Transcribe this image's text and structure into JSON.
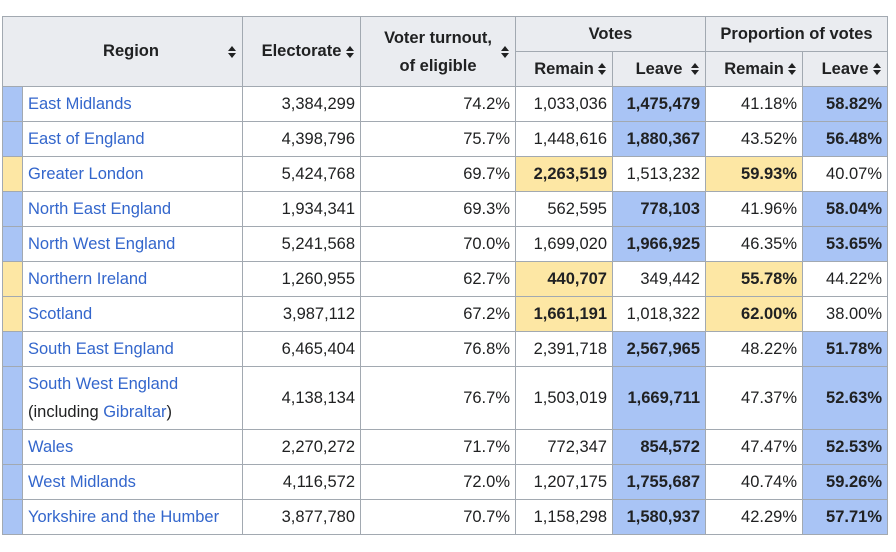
{
  "colors": {
    "leave": "#a9c4f5",
    "remain": "#fde7a4",
    "link": "#3366cc",
    "header_bg": "#eaecf0",
    "border": "#a2a9b1"
  },
  "header": {
    "region": "Region",
    "electorate": "Electorate",
    "turnout_line1": "Voter turnout,",
    "turnout_line2": "of eligible",
    "votes": "Votes",
    "proportion": "Proportion of votes",
    "remain": "Remain",
    "leave": "Leave",
    "remain_pct": "Remain",
    "leave_pct": "Leave"
  },
  "rows": [
    {
      "region": "East Midlands",
      "region_extra": "",
      "region_extra_link": "",
      "region_extra_close": "",
      "winner": "leave",
      "electorate": "3,384,299",
      "turnout": "74.2%",
      "remain": "1,033,036",
      "leave": "1,475,479",
      "remain_pct": "41.18%",
      "leave_pct": "58.82%"
    },
    {
      "region": "East of England",
      "region_extra": "",
      "region_extra_link": "",
      "region_extra_close": "",
      "winner": "leave",
      "electorate": "4,398,796",
      "turnout": "75.7%",
      "remain": "1,448,616",
      "leave": "1,880,367",
      "remain_pct": "43.52%",
      "leave_pct": "56.48%"
    },
    {
      "region": "Greater London",
      "region_extra": "",
      "region_extra_link": "",
      "region_extra_close": "",
      "winner": "remain",
      "electorate": "5,424,768",
      "turnout": "69.7%",
      "remain": "2,263,519",
      "leave": "1,513,232",
      "remain_pct": "59.93%",
      "leave_pct": "40.07%"
    },
    {
      "region": "North East England",
      "region_extra": "",
      "region_extra_link": "",
      "region_extra_close": "",
      "winner": "leave",
      "electorate": "1,934,341",
      "turnout": "69.3%",
      "remain": "562,595",
      "leave": "778,103",
      "remain_pct": "41.96%",
      "leave_pct": "58.04%"
    },
    {
      "region": "North West England",
      "region_extra": "",
      "region_extra_link": "",
      "region_extra_close": "",
      "winner": "leave",
      "electorate": "5,241,568",
      "turnout": "70.0%",
      "remain": "1,699,020",
      "leave": "1,966,925",
      "remain_pct": "46.35%",
      "leave_pct": "53.65%"
    },
    {
      "region": "Northern Ireland",
      "region_extra": "",
      "region_extra_link": "",
      "region_extra_close": "",
      "winner": "remain",
      "electorate": "1,260,955",
      "turnout": "62.7%",
      "remain": "440,707",
      "leave": "349,442",
      "remain_pct": "55.78%",
      "leave_pct": "44.22%"
    },
    {
      "region": "Scotland",
      "region_extra": "",
      "region_extra_link": "",
      "region_extra_close": "",
      "winner": "remain",
      "electorate": "3,987,112",
      "turnout": "67.2%",
      "remain": "1,661,191",
      "leave": "1,018,322",
      "remain_pct": "62.00%",
      "leave_pct": "38.00%"
    },
    {
      "region": "South East England",
      "region_extra": "",
      "region_extra_link": "",
      "region_extra_close": "",
      "winner": "leave",
      "electorate": "6,465,404",
      "turnout": "76.8%",
      "remain": "2,391,718",
      "leave": "2,567,965",
      "remain_pct": "48.22%",
      "leave_pct": "51.78%"
    },
    {
      "region": "South West England",
      "region_extra": "(including ",
      "region_extra_link": "Gibraltar",
      "region_extra_close": ")",
      "winner": "leave",
      "electorate": "4,138,134",
      "turnout": "76.7%",
      "remain": "1,503,019",
      "leave": "1,669,711",
      "remain_pct": "47.37%",
      "leave_pct": "52.63%"
    },
    {
      "region": "Wales",
      "region_extra": "",
      "region_extra_link": "",
      "region_extra_close": "",
      "winner": "leave",
      "electorate": "2,270,272",
      "turnout": "71.7%",
      "remain": "772,347",
      "leave": "854,572",
      "remain_pct": "47.47%",
      "leave_pct": "52.53%"
    },
    {
      "region": "West Midlands",
      "region_extra": "",
      "region_extra_link": "",
      "region_extra_close": "",
      "winner": "leave",
      "electorate": "4,116,572",
      "turnout": "72.0%",
      "remain": "1,207,175",
      "leave": "1,755,687",
      "remain_pct": "40.74%",
      "leave_pct": "59.26%"
    },
    {
      "region": "Yorkshire and the Humber",
      "region_extra": "",
      "region_extra_link": "",
      "region_extra_close": "",
      "winner": "leave",
      "electorate": "3,877,780",
      "turnout": "70.7%",
      "remain": "1,158,298",
      "leave": "1,580,937",
      "remain_pct": "42.29%",
      "leave_pct": "57.71%"
    }
  ]
}
